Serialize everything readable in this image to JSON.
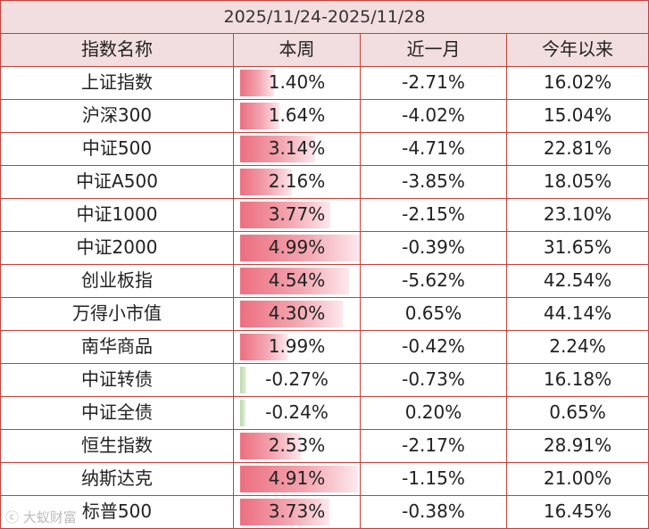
{
  "title": "2025/11/24-2025/11/28",
  "headers": [
    "指数名称",
    "本周",
    "近一月",
    "今年以来"
  ],
  "rows": [
    {
      "name": "上证指数",
      "week": "1.40%",
      "week_value": 1.4,
      "month": "-2.71%",
      "ytd": "16.02%"
    },
    {
      "name": "沪深300",
      "week": "1.64%",
      "week_value": 1.64,
      "month": "-4.02%",
      "ytd": "15.04%"
    },
    {
      "name": "中证500",
      "week": "3.14%",
      "week_value": 3.14,
      "month": "-4.71%",
      "ytd": "22.81%"
    },
    {
      "name": "中证A500",
      "week": "2.16%",
      "week_value": 2.16,
      "month": "-3.85%",
      "ytd": "18.05%"
    },
    {
      "name": "中证1000",
      "week": "3.77%",
      "week_value": 3.77,
      "month": "-2.15%",
      "ytd": "23.10%"
    },
    {
      "name": "中证2000",
      "week": "4.99%",
      "week_value": 4.99,
      "month": "-0.39%",
      "ytd": "31.65%"
    },
    {
      "name": "创业板指",
      "week": "4.54%",
      "week_value": 4.54,
      "month": "-5.62%",
      "ytd": "42.54%"
    },
    {
      "name": "万得小市值",
      "week": "4.30%",
      "week_value": 4.3,
      "month": "0.65%",
      "ytd": "44.14%"
    },
    {
      "name": "南华商品",
      "week": "1.99%",
      "week_value": 1.99,
      "month": "-0.42%",
      "ytd": "2.24%"
    },
    {
      "name": "中证转债",
      "week": "-0.27%",
      "week_value": -0.27,
      "month": "-0.73%",
      "ytd": "16.18%"
    },
    {
      "name": "中证全债",
      "week": "-0.24%",
      "week_value": -0.24,
      "month": "0.20%",
      "ytd": "0.65%"
    },
    {
      "name": "恒生指数",
      "week": "2.53%",
      "week_value": 2.53,
      "month": "-2.17%",
      "ytd": "28.91%"
    },
    {
      "name": "纳斯达克",
      "week": "4.91%",
      "week_value": 4.91,
      "month": "-1.15%",
      "ytd": "21.00%"
    },
    {
      "name": "标普500",
      "week": "3.73%",
      "week_value": 3.73,
      "month": "-0.38%",
      "ytd": "16.45%"
    }
  ],
  "watermark": "大蚁财富",
  "colors": {
    "border": "#c4413a",
    "header_bg": "#f2dede",
    "bar_positive": "#ec6f80",
    "bar_negative": "#b9d7a8"
  }
}
